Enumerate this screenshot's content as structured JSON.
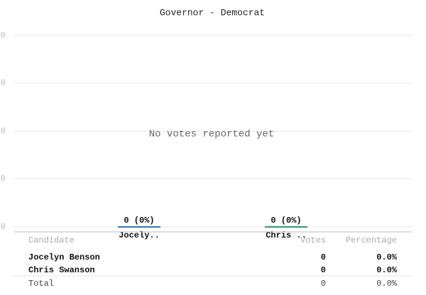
{
  "chart": {
    "title": "Governor - Democrat",
    "message": "No votes reported yet",
    "y_axis_labels": [
      "0",
      "0",
      "0",
      "0",
      "0"
    ],
    "bars": [
      {
        "category": "Jocely..",
        "value": 0,
        "value_label": "0 (0%)",
        "color": "#2f7ab8"
      },
      {
        "category": "Chris ..",
        "value": 0,
        "value_label": "0 (0%)",
        "color": "#2e9b6a"
      }
    ]
  },
  "table": {
    "header": [
      "Candidate",
      "Votes",
      "Percentage"
    ],
    "rows": [
      [
        "Jocelyn Benson",
        "0",
        "0.0%"
      ],
      [
        "Chris Swanson",
        "0",
        "0.0%"
      ]
    ],
    "total": [
      "Total",
      "0",
      "0.0%"
    ]
  }
}
